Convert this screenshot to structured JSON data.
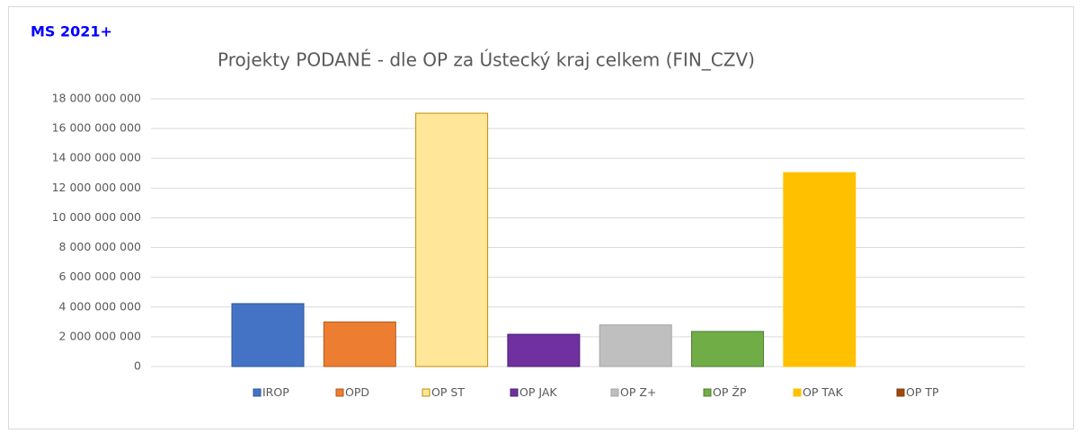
{
  "label": "MS 2021+",
  "chart_data": {
    "type": "bar",
    "title": "Projekty PODANÉ - dle OP za Ústecký kraj celkem (FIN_CZV)",
    "series": [
      {
        "name": "IROP",
        "color": "#4472c4",
        "values": [
          4230000000
        ]
      },
      {
        "name": "OPD",
        "color": "#ed7d31",
        "values": [
          3000000000
        ]
      },
      {
        "name": "OP ST",
        "color": "#ffe699",
        "values": [
          17030000000
        ]
      },
      {
        "name": "OP JAK",
        "color": "#7030a0",
        "values": [
          2170000000
        ]
      },
      {
        "name": "OP Z+",
        "color": "#bfbfbf",
        "values": [
          2800000000
        ]
      },
      {
        "name": "OP ŽP",
        "color": "#70ad47",
        "values": [
          2360000000
        ]
      },
      {
        "name": "OP TAK",
        "color": "#ffc000",
        "values": [
          13040000000
        ]
      },
      {
        "name": "OP TP",
        "color": "#9e480e",
        "values": [
          0
        ]
      }
    ],
    "ylim": [
      0,
      18000000000
    ],
    "yticks": [
      0,
      {
        "value": 2000000000,
        "label": "2 000 000 000"
      },
      {
        "value": 4000000000,
        "label": "4 000 000 000"
      },
      {
        "value": 6000000000,
        "label": "6 000 000 000"
      },
      {
        "value": 8000000000,
        "label": "8 000 000 000"
      },
      {
        "value": 10000000000,
        "label": "10 000 000 000"
      },
      {
        "value": 12000000000,
        "label": "12 000 000 000"
      },
      {
        "value": 14000000000,
        "label": "14 000 000 000"
      },
      {
        "value": 16000000000,
        "label": "16 000 000 000"
      },
      {
        "value": 18000000000,
        "label": "18 000 000 000"
      }
    ],
    "grid": true,
    "legend": "bottom"
  }
}
